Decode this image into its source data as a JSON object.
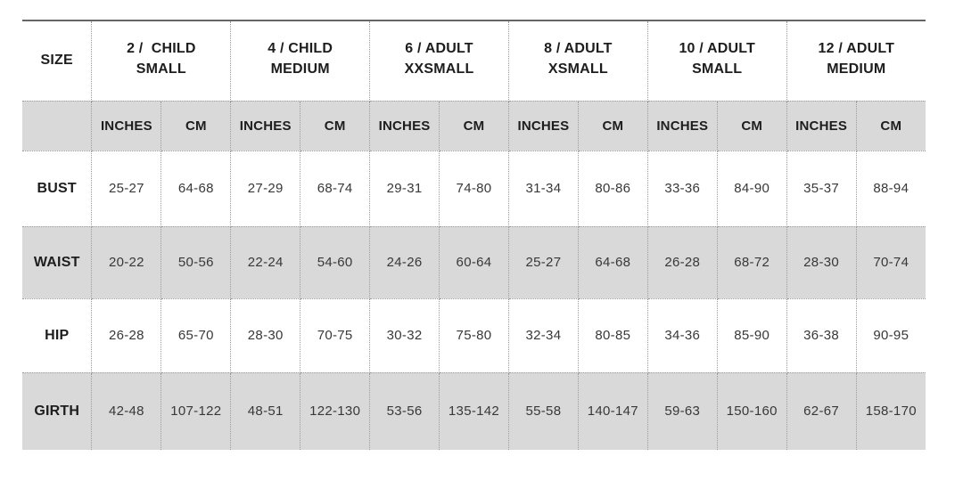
{
  "chart_data": {
    "type": "table",
    "corner_label": "SIZE",
    "size_groups": [
      {
        "line1": "2 /  CHILD",
        "line2": "SMALL"
      },
      {
        "line1": "4 / CHILD",
        "line2": "MEDIUM"
      },
      {
        "line1": "6 / ADULT",
        "line2": "XXSMALL"
      },
      {
        "line1": "8 / ADULT",
        "line2": "XSMALL"
      },
      {
        "line1": "10 / ADULT",
        "line2": "SMALL"
      },
      {
        "line1": "12 / ADULT",
        "line2": "MEDIUM"
      }
    ],
    "unit_headers": [
      "INCHES",
      "CM"
    ],
    "rows": [
      {
        "label": "BUST",
        "shaded": false,
        "values": [
          "25-27",
          "64-68",
          "27-29",
          "68-74",
          "29-31",
          "74-80",
          "31-34",
          "80-86",
          "33-36",
          "84-90",
          "35-37",
          "88-94"
        ]
      },
      {
        "label": "WAIST",
        "shaded": true,
        "values": [
          "20-22",
          "50-56",
          "22-24",
          "54-60",
          "24-26",
          "60-64",
          "25-27",
          "64-68",
          "26-28",
          "68-72",
          "28-30",
          "70-74"
        ]
      },
      {
        "label": "HIP",
        "shaded": false,
        "values": [
          "26-28",
          "65-70",
          "28-30",
          "70-75",
          "30-32",
          "75-80",
          "32-34",
          "80-85",
          "34-36",
          "85-90",
          "36-38",
          "90-95"
        ]
      },
      {
        "label": "GIRTH",
        "shaded": true,
        "values": [
          "42-48",
          "107-122",
          "48-51",
          "122-130",
          "53-56",
          "135-142",
          "55-58",
          "140-147",
          "59-63",
          "150-160",
          "62-67",
          "158-170"
        ]
      }
    ]
  },
  "colors": {
    "shaded_cell": "#d9d9d9",
    "top_rule": "#656565",
    "dotted_border": "#9c9c9c",
    "label_text": "#1d1d1d",
    "value_text": "#383838"
  }
}
